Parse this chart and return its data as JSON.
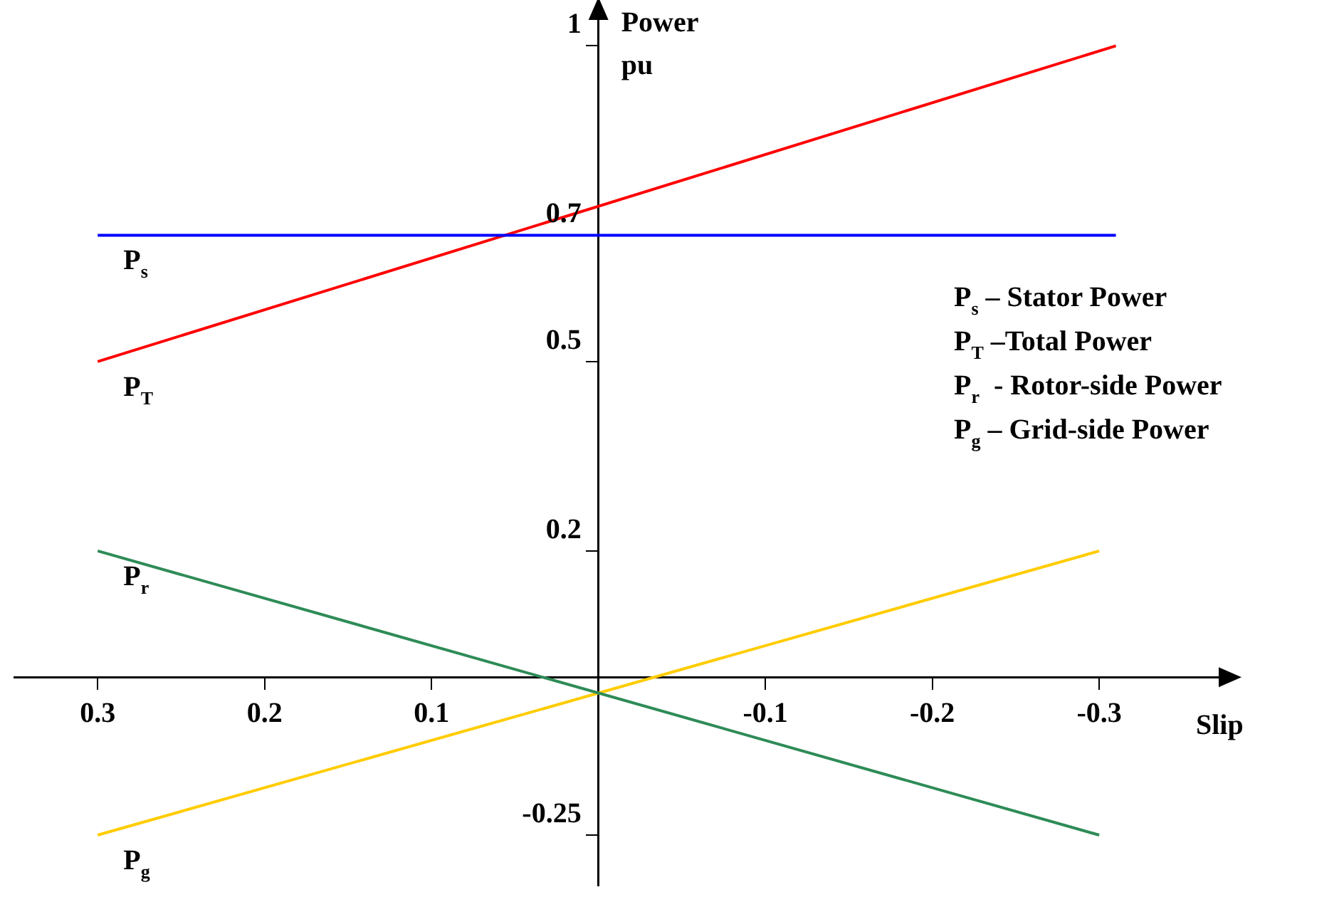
{
  "chart_data": {
    "type": "line",
    "xlabel": "Slip",
    "ylabel": "Power pu",
    "marker": "none",
    "xlim": [
      0.35,
      -0.375
    ],
    "xticks": [
      0.3,
      0.2,
      0.1,
      -0.1,
      -0.2,
      -0.3
    ],
    "ylim": [
      -0.33,
      1.05
    ],
    "yticks": [
      -0.25,
      0.2,
      0.5,
      0.7,
      1
    ],
    "series": [
      {
        "name": "P$_{s}$",
        "color": "#0000ff",
        "x": [
          0.3,
          -0.31
        ],
        "values": [
          0.7,
          0.7
        ]
      },
      {
        "name": "P$_{T}$",
        "color": "#ff0000",
        "x": [
          0.3,
          -0.31
        ],
        "values": [
          0.5,
          1.0
        ]
      },
      {
        "name": "P$_{r}$",
        "color": "#2e8b57",
        "x": [
          0.3,
          -0.3
        ],
        "values": [
          0.2,
          -0.25
        ]
      },
      {
        "name": "P$_{g}$",
        "color": "#ffcc00",
        "x": [
          0.3,
          -0.3
        ],
        "values": [
          -0.25,
          0.2
        ]
      }
    ],
    "annotations": [
      "P$_{s}$ – Stator Power",
      "P$_{T}$ –Total Power",
      "P$_{r}$  - Rotor-side Power",
      "P$_{g}$ – Grid-side Power"
    ]
  }
}
